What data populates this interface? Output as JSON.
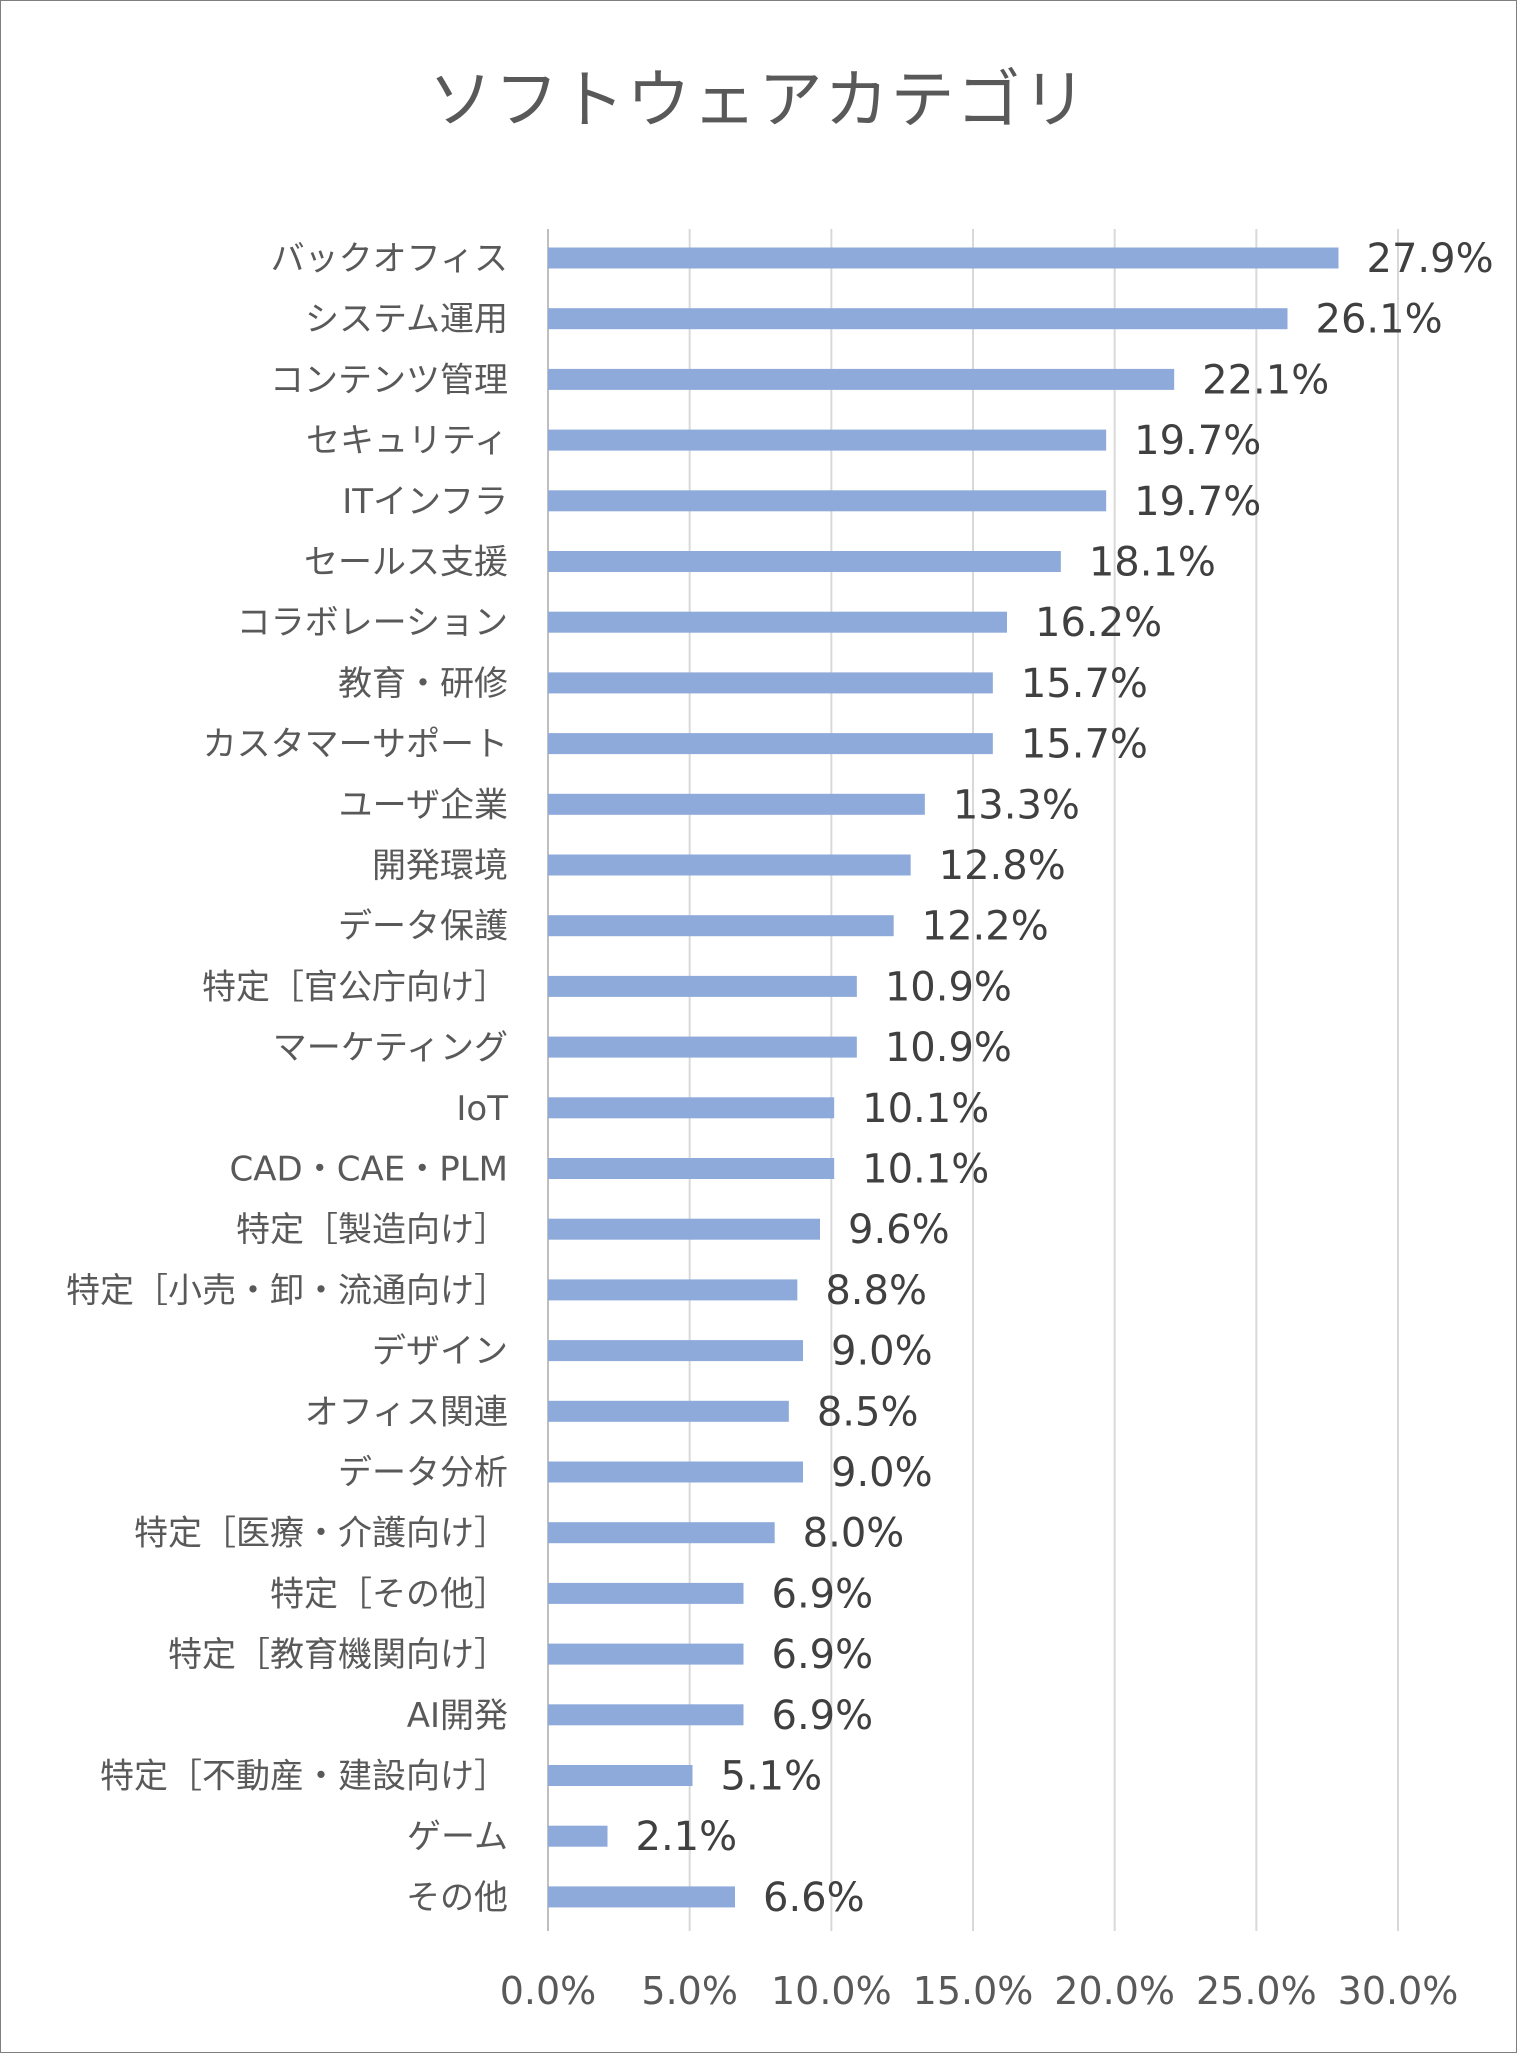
{
  "chart_data": {
    "type": "bar",
    "orientation": "horizontal",
    "title": "ソフトウェアカテゴリ",
    "categories": [
      "バックオフィス",
      "システム運用",
      "コンテンツ管理",
      "セキュリティ",
      "ITインフラ",
      "セールス支援",
      "コラボレーション",
      "教育・研修",
      "カスタマーサポート",
      "ユーザ企業",
      "開発環境",
      "データ保護",
      "特定［官公庁向け］",
      "マーケティング",
      "IoT",
      "CAD・CAE・PLM",
      "特定［製造向け］",
      "特定［小売・卸・流通向け］",
      "デザイン",
      "オフィス関連",
      "データ分析",
      "特定［医療・介護向け］",
      "特定［その他］",
      "特定［教育機関向け］",
      "AI開発",
      "特定［不動産・建設向け］",
      "ゲーム",
      "その他"
    ],
    "values": [
      27.9,
      26.1,
      22.1,
      19.7,
      19.7,
      18.1,
      16.2,
      15.7,
      15.7,
      13.3,
      12.8,
      12.2,
      10.9,
      10.9,
      10.1,
      10.1,
      9.6,
      8.8,
      9.0,
      8.5,
      9.0,
      8.0,
      6.9,
      6.9,
      6.9,
      5.1,
      2.1,
      6.6
    ],
    "value_labels": [
      "27.9%",
      "26.1%",
      "22.1%",
      "19.7%",
      "19.7%",
      "18.1%",
      "16.2%",
      "15.7%",
      "15.7%",
      "13.3%",
      "12.8%",
      "12.2%",
      "10.9%",
      "10.9%",
      "10.1%",
      "10.1%",
      "9.6%",
      "8.8%",
      "9.0%",
      "8.5%",
      "9.0%",
      "8.0%",
      "6.9%",
      "6.9%",
      "6.9%",
      "5.1%",
      "2.1%",
      "6.6%"
    ],
    "xlim": [
      0,
      30
    ],
    "xticks": [
      0,
      5,
      10,
      15,
      20,
      25,
      30
    ],
    "xtick_labels": [
      "0.0%",
      "5.0%",
      "10.0%",
      "15.0%",
      "20.0%",
      "25.0%",
      "30.0%"
    ],
    "grid": true,
    "legend": "none",
    "colors": {
      "bar": "#8eaadb",
      "grid": "#d9d9d9",
      "text": "#595959",
      "value_label": "#404040"
    }
  }
}
